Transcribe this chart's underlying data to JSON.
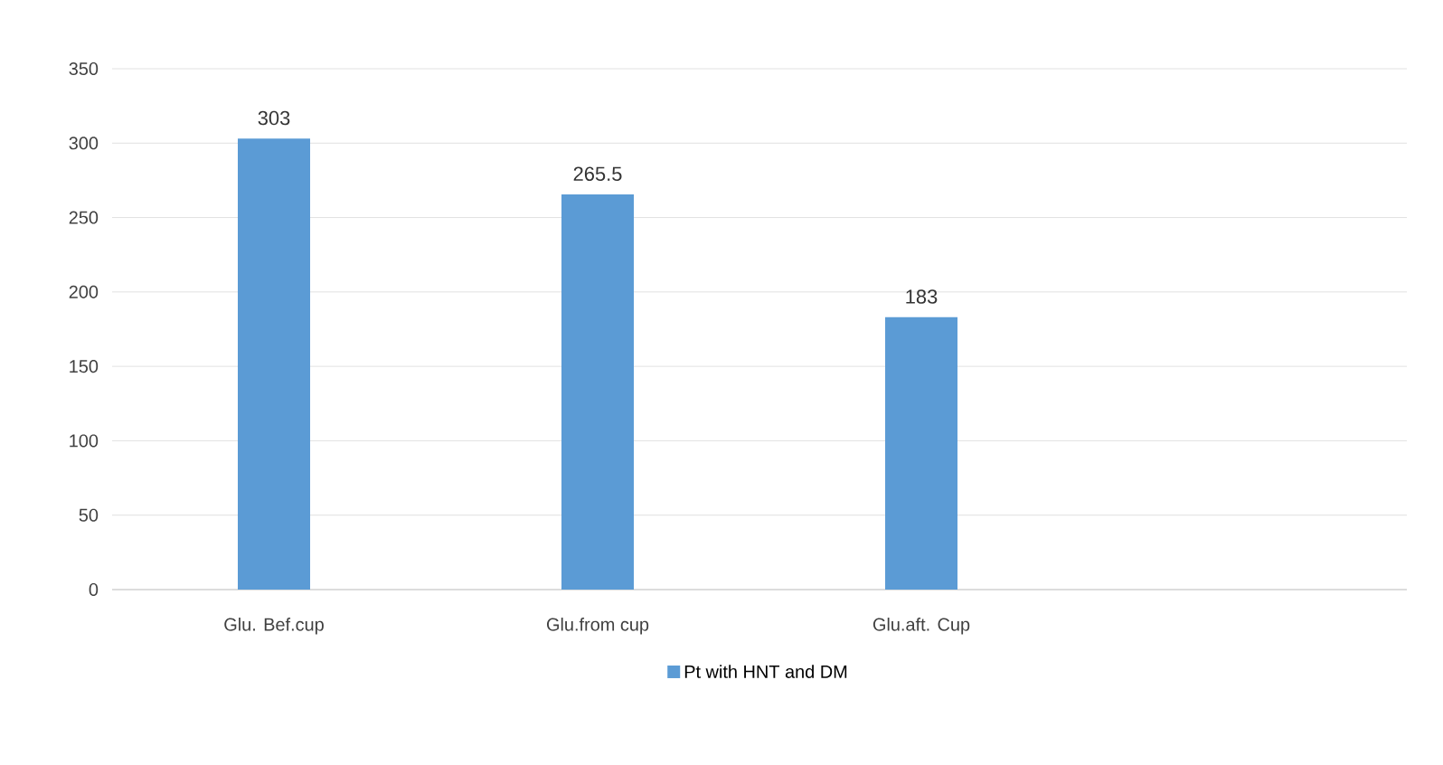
{
  "chart_data": {
    "type": "bar",
    "categories": [
      "Glu. Bef.cup",
      "Glu.from cup",
      "Glu.aft. Cup",
      null
    ],
    "series": [
      {
        "name": "Pt with HNT and DM",
        "color": "#5b9bd5",
        "values": [
          303,
          265.5,
          183,
          null
        ]
      }
    ],
    "ylim": [
      0,
      350
    ],
    "yticks": [
      0,
      50,
      100,
      150,
      200,
      250,
      300,
      350
    ],
    "grid": "y",
    "legend": "bottom",
    "data_labels": true
  }
}
